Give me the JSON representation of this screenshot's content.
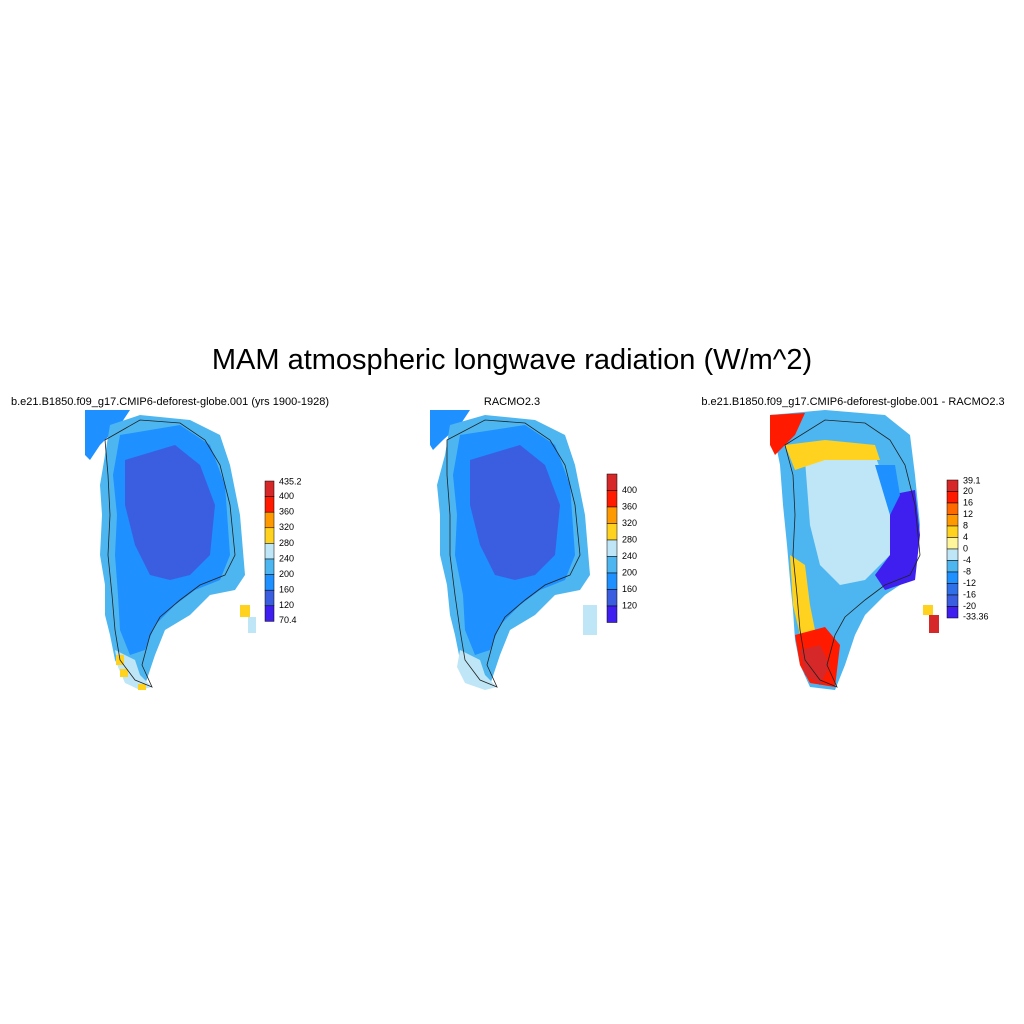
{
  "title": "MAM atmospheric longwave radiation (W/m^2)",
  "colors": {
    "ice_interior": "#3b5ee0",
    "mid_blue": "#1e90ff",
    "light_blue": "#4db6f0",
    "pale_blue": "#bfe6f6",
    "gold": "#ffd21f",
    "orange": "#ff9900",
    "red": "#ff1a00",
    "dark_red": "#d62828"
  },
  "chart_data": [
    {
      "type": "heatmap",
      "panel_title": "b.e21.B1850.f09_g17.CMIP6-deforest-globe.001 (yrs 1900-1928)",
      "colorbar": {
        "min_label": "70.4",
        "max_label": "435.2",
        "tick_labels": [
          "400",
          "360",
          "320",
          "280",
          "240",
          "200",
          "160",
          "120"
        ],
        "colors": [
          "#d62828",
          "#ff1a00",
          "#ff9900",
          "#ffd21f",
          "#bfe6f6",
          "#4db6f0",
          "#1e90ff",
          "#3b5ee0",
          "#3f1ff0"
        ]
      }
    },
    {
      "type": "heatmap",
      "panel_title": "RACMO2.3",
      "colorbar": {
        "min_label": "",
        "max_label": "",
        "tick_labels": [
          "400",
          "360",
          "320",
          "280",
          "240",
          "200",
          "160",
          "120"
        ],
        "colors": [
          "#d62828",
          "#ff1a00",
          "#ff9900",
          "#ffd21f",
          "#bfe6f6",
          "#4db6f0",
          "#1e90ff",
          "#3b5ee0",
          "#3f1ff0"
        ]
      }
    },
    {
      "type": "heatmap",
      "panel_title": "b.e21.B1850.f09_g17.CMIP6-deforest-globe.001 - RACMO2.3",
      "colorbar": {
        "min_label": "-33.36",
        "max_label": "39.1",
        "tick_labels": [
          "20",
          "16",
          "12",
          "8",
          "4",
          "0",
          "-4",
          "-8",
          "-12",
          "-16",
          "-20"
        ],
        "colors": [
          "#d62828",
          "#ff1a00",
          "#ff6a00",
          "#ff9900",
          "#ffd21f",
          "#fff59a",
          "#bfe6f6",
          "#4db6f0",
          "#1e90ff",
          "#2f6fe8",
          "#3b5ee0",
          "#3f1ff0"
        ]
      }
    }
  ]
}
